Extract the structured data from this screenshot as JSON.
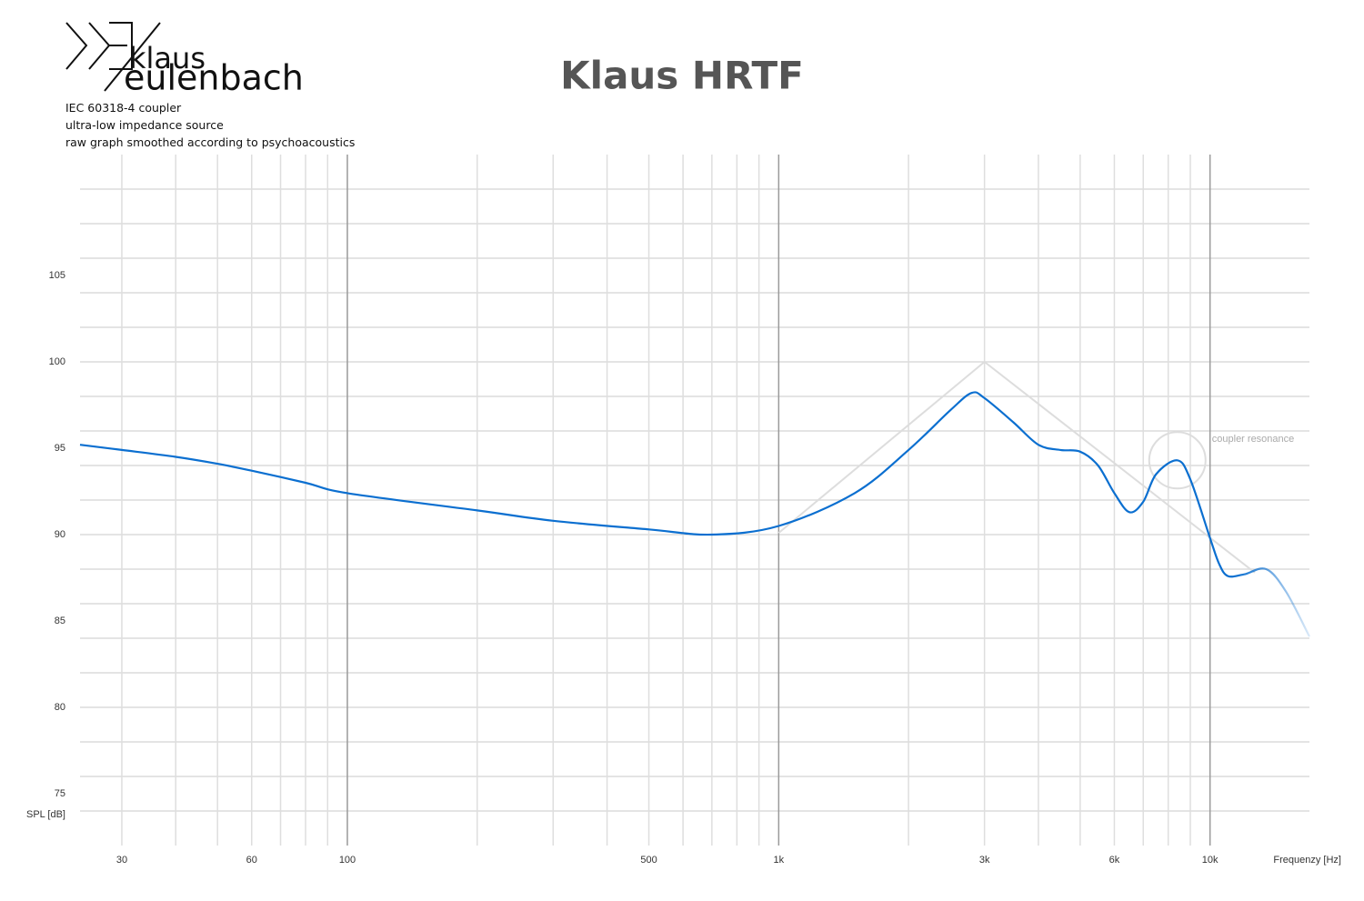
{
  "logo": {
    "line1": "klaus",
    "line2": "eulenbach"
  },
  "notes": [
    "IEC 60318-4 coupler",
    "ultra-low impedance source",
    "raw graph smoothed according to psychoacoustics"
  ],
  "chart_data": {
    "type": "line",
    "title": "Klaus HRTF",
    "x_label": "Frequenzy [Hz]",
    "y_label": "SPL [dB]",
    "x_log": true,
    "xlim": [
      24,
      17000
    ],
    "ylim": [
      72,
      112
    ],
    "xticks": [
      30,
      60,
      100,
      500,
      {
        "value": 1000,
        "label": "1k"
      },
      {
        "value": 3000,
        "label": "3k"
      },
      {
        "value": 6000,
        "label": "6k"
      },
      {
        "value": 10000,
        "label": "10k"
      }
    ],
    "x_minor_grid": [
      40,
      50,
      70,
      80,
      90,
      200,
      300,
      400,
      600,
      700,
      800,
      900,
      2000,
      4000,
      5000,
      7000,
      8000,
      9000
    ],
    "yticks": [
      75,
      80,
      85,
      90,
      95,
      100,
      105
    ],
    "y_grid": [
      74,
      76,
      78,
      80,
      82,
      84,
      86,
      88,
      90,
      92,
      94,
      96,
      98,
      100,
      102,
      104,
      106,
      108,
      110
    ],
    "series": [
      {
        "color": "#0b6fd0",
        "x": [
          24,
          30,
          40,
          50,
          60,
          80,
          100,
          200,
          300,
          500,
          700,
          1000,
          1500,
          2000,
          2500,
          2800,
          3000,
          3500,
          4000,
          4500,
          5000,
          5500,
          6000,
          6500,
          7000,
          7500,
          8400,
          9000,
          10000,
          10500,
          11000,
          12000,
          13500,
          15000,
          17000
        ],
        "values": [
          95.2,
          94.9,
          94.5,
          94.1,
          93.7,
          93.0,
          92.4,
          91.4,
          90.8,
          90.3,
          90.0,
          90.5,
          92.4,
          94.9,
          97.2,
          98.2,
          97.9,
          96.5,
          95.2,
          94.9,
          94.8,
          94.0,
          92.4,
          91.3,
          91.9,
          93.5,
          94.3,
          93.2,
          89.8,
          88.3,
          87.6,
          87.7,
          88.0,
          86.7,
          84.1
        ]
      }
    ],
    "target": {
      "color": "#dddddd",
      "x": [
        1000,
        3000,
        12700
      ],
      "values": [
        90.1,
        100,
        87.8
      ]
    },
    "annotation": {
      "text": "coupler resonance",
      "x": 8400,
      "y": 94.3
    }
  }
}
